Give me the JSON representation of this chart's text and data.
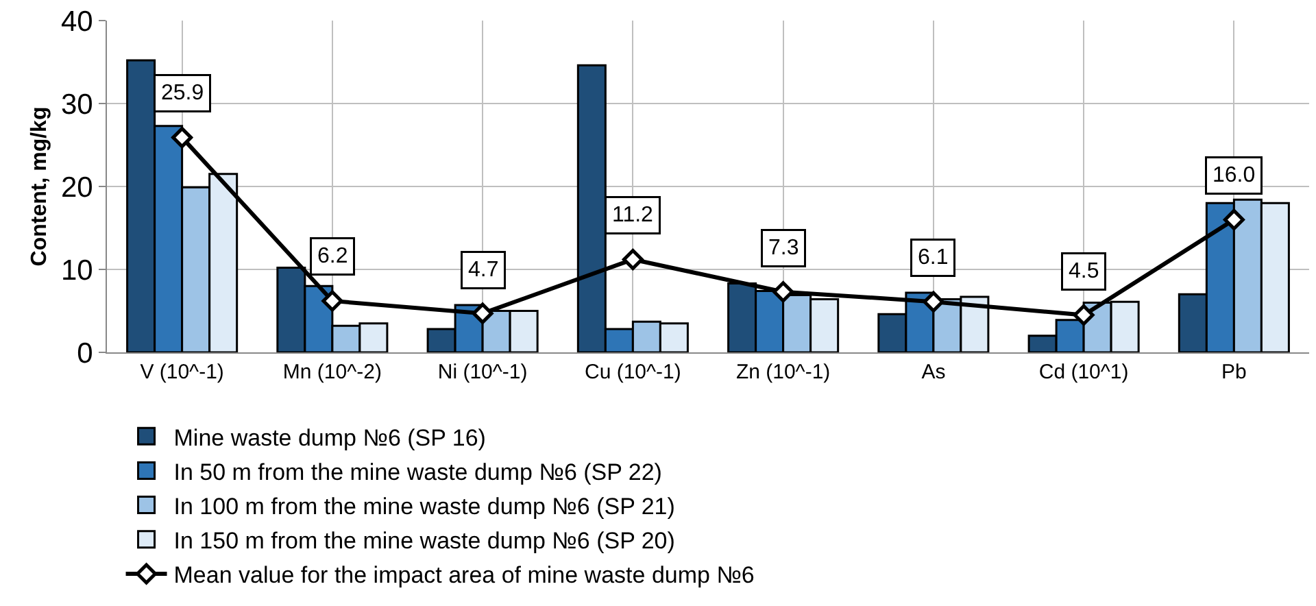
{
  "chart_data": {
    "type": "bar",
    "ylabel": "Content, mg/kg",
    "categories": [
      "V (10^-1)",
      "Mn (10^-2)",
      "Ni (10^-1)",
      "Cu (10^-1)",
      "Zn (10^-1)",
      "As",
      "Cd (10^1)",
      "Pb"
    ],
    "series": [
      {
        "name": "Mine waste dump №6 (SP 16)",
        "color": "#1f4e79",
        "values": [
          35.2,
          10.2,
          2.8,
          34.6,
          8.3,
          4.6,
          2.0,
          7.0
        ]
      },
      {
        "name": "In 50 m from the mine waste dump №6 (SP 22)",
        "color": "#2e75b6",
        "values": [
          27.3,
          8.0,
          5.7,
          2.8,
          7.4,
          7.2,
          3.9,
          18.0
        ]
      },
      {
        "name": "In 100 m from the mine waste dump №6 (SP 21)",
        "color": "#9dc3e6",
        "values": [
          19.9,
          3.2,
          5.0,
          3.7,
          6.9,
          6.4,
          6.0,
          18.4
        ]
      },
      {
        "name": "In 150 m from the mine waste dump №6 (SP 20)",
        "color": "#deebf7",
        "values": [
          21.5,
          3.5,
          5.0,
          3.5,
          6.4,
          6.7,
          6.1,
          18.0
        ]
      },
      {
        "name": "Mean value for the impact area of mine waste dump №6",
        "type": "line",
        "color": "#000000",
        "marker": "diamond",
        "values": [
          25.9,
          6.2,
          4.7,
          11.2,
          7.3,
          6.1,
          4.5,
          16.0
        ],
        "value_labels": [
          "25.9",
          "6.2",
          "4.7",
          "11.2",
          "7.3",
          "6.1",
          "4.5",
          "16.0"
        ]
      }
    ],
    "ylim": [
      0,
      40
    ],
    "yticks": [
      0,
      10,
      20,
      30,
      40
    ],
    "grid": true,
    "legend": "bottom"
  }
}
